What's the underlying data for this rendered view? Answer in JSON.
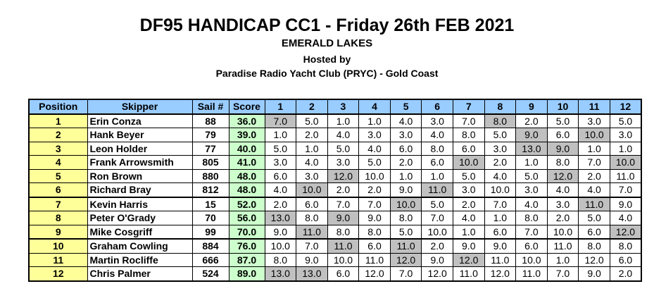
{
  "header": {
    "title": "DF95 HANDICAP CC1 - Friday 26th FEB  2021",
    "venue": "EMERALD LAKES",
    "hosted": "Hosted by",
    "club": "Paradise Radio Yacht Club (PRYC) - Gold Coast"
  },
  "table": {
    "columns": [
      "Position",
      "Skipper",
      "Sail #",
      "Score",
      "1",
      "2",
      "3",
      "4",
      "5",
      "6",
      "7",
      "8",
      "9",
      "10",
      "11",
      "12"
    ],
    "rows": [
      {
        "position": "1",
        "skipper": "Erin Conza",
        "sail": "88",
        "score": "36.0",
        "races": [
          "7.0",
          "5.0",
          "1.0",
          "1.0",
          "4.0",
          "3.0",
          "7.0",
          "8.0",
          "2.0",
          "5.0",
          "3.0",
          "5.0"
        ],
        "discarded": [
          0,
          7
        ]
      },
      {
        "position": "2",
        "skipper": "Hank Beyer",
        "sail": "79",
        "score": "39.0",
        "races": [
          "1.0",
          "2.0",
          "4.0",
          "3.0",
          "3.0",
          "4.0",
          "8.0",
          "5.0",
          "9.0",
          "6.0",
          "10.0",
          "3.0"
        ],
        "discarded": [
          8,
          10
        ]
      },
      {
        "position": "3",
        "skipper": "Leon Holder",
        "sail": "77",
        "score": "40.0",
        "races": [
          "5.0",
          "1.0",
          "5.0",
          "4.0",
          "6.0",
          "8.0",
          "6.0",
          "3.0",
          "13.0",
          "9.0",
          "1.0",
          "1.0"
        ],
        "discarded": [
          8,
          9
        ]
      },
      {
        "position": "4",
        "skipper": "Frank Arrowsmith",
        "sail": "805",
        "score": "41.0",
        "races": [
          "3.0",
          "4.0",
          "3.0",
          "5.0",
          "2.0",
          "6.0",
          "10.0",
          "2.0",
          "1.0",
          "8.0",
          "7.0",
          "10.0"
        ],
        "discarded": [
          6,
          11
        ]
      },
      {
        "position": "5",
        "skipper": "Ron Brown",
        "sail": "880",
        "score": "48.0",
        "races": [
          "6.0",
          "3.0",
          "12.0",
          "10.0",
          "1.0",
          "1.0",
          "5.0",
          "4.0",
          "5.0",
          "12.0",
          "2.0",
          "11.0"
        ],
        "discarded": [
          2,
          9
        ]
      },
      {
        "position": "6",
        "skipper": "Richard Bray",
        "sail": "812",
        "score": "48.0",
        "races": [
          "4.0",
          "10.0",
          "2.0",
          "2.0",
          "9.0",
          "11.0",
          "3.0",
          "10.0",
          "3.0",
          "4.0",
          "4.0",
          "7.0"
        ],
        "discarded": [
          1,
          5
        ]
      },
      {
        "position": "7",
        "skipper": "Kevin Harris",
        "sail": "15",
        "score": "52.0",
        "races": [
          "2.0",
          "6.0",
          "7.0",
          "7.0",
          "10.0",
          "5.0",
          "2.0",
          "7.0",
          "4.0",
          "3.0",
          "11.0",
          "9.0"
        ],
        "discarded": [
          4,
          10
        ]
      },
      {
        "position": "8",
        "skipper": "Peter O'Grady",
        "sail": "70",
        "score": "56.0",
        "races": [
          "13.0",
          "8.0",
          "9.0",
          "9.0",
          "8.0",
          "7.0",
          "4.0",
          "1.0",
          "8.0",
          "2.0",
          "5.0",
          "4.0"
        ],
        "discarded": [
          0,
          2
        ]
      },
      {
        "position": "9",
        "skipper": "Mike Cosgriff",
        "sail": "99",
        "score": "70.0",
        "races": [
          "9.0",
          "11.0",
          "8.0",
          "8.0",
          "5.0",
          "10.0",
          "1.0",
          "6.0",
          "7.0",
          "10.0",
          "6.0",
          "12.0"
        ],
        "discarded": [
          1,
          11
        ]
      },
      {
        "position": "10",
        "skipper": "Graham Cowling",
        "sail": "884",
        "score": "76.0",
        "races": [
          "10.0",
          "7.0",
          "11.0",
          "6.0",
          "11.0",
          "2.0",
          "9.0",
          "9.0",
          "6.0",
          "11.0",
          "8.0",
          "8.0"
        ],
        "discarded": [
          2,
          4
        ]
      },
      {
        "position": "11",
        "skipper": "Martin Rocliffe",
        "sail": "666",
        "score": "87.0",
        "races": [
          "8.0",
          "9.0",
          "10.0",
          "11.0",
          "12.0",
          "9.0",
          "12.0",
          "11.0",
          "10.0",
          "1.0",
          "12.0",
          "6.0"
        ],
        "discarded": [
          4,
          6
        ]
      },
      {
        "position": "12",
        "skipper": "Chris Palmer",
        "sail": "524",
        "score": "89.0",
        "races": [
          "13.0",
          "13.0",
          "6.0",
          "12.0",
          "7.0",
          "12.0",
          "11.0",
          "12.0",
          "11.0",
          "7.0",
          "9.0",
          "2.0"
        ],
        "discarded": [
          0,
          1
        ]
      }
    ]
  }
}
